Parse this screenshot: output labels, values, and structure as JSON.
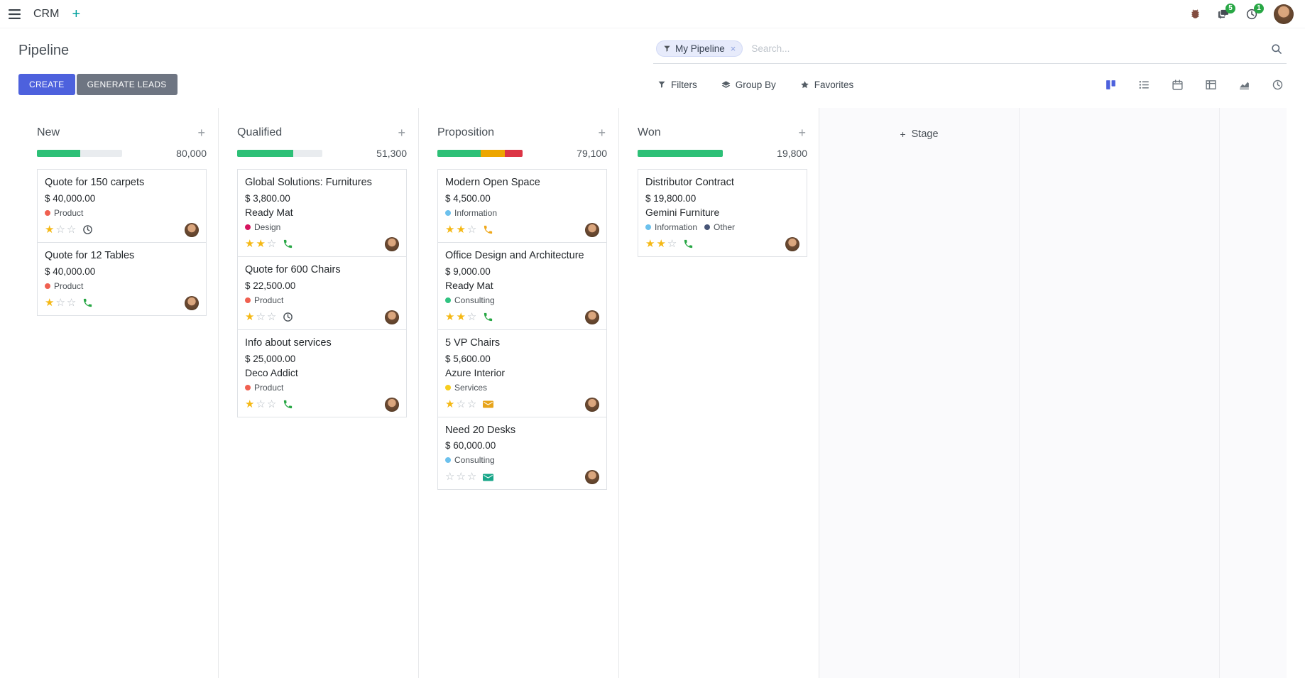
{
  "colors": {
    "primary": "#4d61dd",
    "secondary": "#6e7582",
    "badge": "#28a745",
    "star": "#f5b814"
  },
  "icons": {
    "star_filled": "★",
    "star_empty": "☆",
    "plus": "+",
    "close": "×"
  },
  "topbar": {
    "app_name": "CRM",
    "messages_badge": "5",
    "activities_badge": "1"
  },
  "control_panel": {
    "title": "Pipeline",
    "create_label": "CREATE",
    "generate_leads_label": "GENERATE LEADS",
    "filters_label": "Filters",
    "group_by_label": "Group By",
    "favorites_label": "Favorites",
    "search_facet": "My Pipeline",
    "search_placeholder": "Search..."
  },
  "stage_add_label": "Stage",
  "columns": [
    {
      "name": "New",
      "amount": "80,000",
      "progress": [
        {
          "color": "#2dc077",
          "pct": 51
        }
      ],
      "cards": [
        {
          "title": "Quote for 150 carpets",
          "amount": "$ 40,000.00",
          "partner": null,
          "tags": [
            {
              "label": "Product",
              "color": "#f06050"
            }
          ],
          "stars": 1,
          "activity": {
            "type": "clock",
            "color": "#495057"
          }
        },
        {
          "title": "Quote for 12 Tables",
          "amount": "$ 40,000.00",
          "partner": null,
          "tags": [
            {
              "label": "Product",
              "color": "#f06050"
            }
          ],
          "stars": 1,
          "activity": {
            "type": "phone",
            "color": "#28a745"
          }
        }
      ]
    },
    {
      "name": "Qualified",
      "amount": "51,300",
      "progress": [
        {
          "color": "#2dc077",
          "pct": 66
        }
      ],
      "cards": [
        {
          "title": "Global Solutions: Furnitures",
          "amount": "$ 3,800.00",
          "partner": "Ready Mat",
          "tags": [
            {
              "label": "Design",
              "color": "#d6145f"
            }
          ],
          "stars": 2,
          "activity": {
            "type": "phone",
            "color": "#28a745"
          }
        },
        {
          "title": "Quote for 600 Chairs",
          "amount": "$ 22,500.00",
          "partner": null,
          "tags": [
            {
              "label": "Product",
              "color": "#f06050"
            }
          ],
          "stars": 1,
          "activity": {
            "type": "clock",
            "color": "#495057"
          }
        },
        {
          "title": "Info about services",
          "amount": "$ 25,000.00",
          "partner": "Deco Addict",
          "tags": [
            {
              "label": "Product",
              "color": "#f06050"
            }
          ],
          "stars": 1,
          "activity": {
            "type": "phone",
            "color": "#28a745"
          }
        }
      ]
    },
    {
      "name": "Proposition",
      "amount": "79,100",
      "progress": [
        {
          "color": "#2dc077",
          "pct": 51
        },
        {
          "color": "#eda600",
          "pct": 28
        },
        {
          "color": "#dc3545",
          "pct": 21
        }
      ],
      "cards": [
        {
          "title": "Modern Open Space",
          "amount": "$ 4,500.00",
          "partner": null,
          "tags": [
            {
              "label": "Information",
              "color": "#6cc1ed"
            }
          ],
          "stars": 2,
          "activity": {
            "type": "phone",
            "color": "#efa81c"
          }
        },
        {
          "title": "Office Design and Architecture",
          "amount": "$ 9,000.00",
          "partner": "Ready Mat",
          "tags": [
            {
              "label": "Consulting",
              "color": "#30c381"
            }
          ],
          "stars": 2,
          "activity": {
            "type": "phone",
            "color": "#28a745"
          }
        },
        {
          "title": "5 VP Chairs",
          "amount": "$ 5,600.00",
          "partner": "Azure Interior",
          "tags": [
            {
              "label": "Services",
              "color": "#f7cd1f"
            }
          ],
          "stars": 1,
          "activity": {
            "type": "envelope",
            "color": "#e7a41b"
          }
        },
        {
          "title": "Need 20 Desks",
          "amount": "$ 60,000.00",
          "partner": null,
          "tags": [
            {
              "label": "Consulting",
              "color": "#6cc1ed"
            }
          ],
          "stars": 0,
          "activity": {
            "type": "envelope",
            "color": "#18a689"
          }
        }
      ]
    },
    {
      "name": "Won",
      "amount": "19,800",
      "progress": [
        {
          "color": "#2dc077",
          "pct": 100
        }
      ],
      "cards": [
        {
          "title": "Distributor Contract",
          "amount": "$ 19,800.00",
          "partner": "Gemini Furniture",
          "tags": [
            {
              "label": "Information",
              "color": "#6cc1ed"
            },
            {
              "label": "Other",
              "color": "#475577"
            }
          ],
          "stars": 2,
          "activity": {
            "type": "phone",
            "color": "#28a745"
          }
        }
      ]
    }
  ]
}
